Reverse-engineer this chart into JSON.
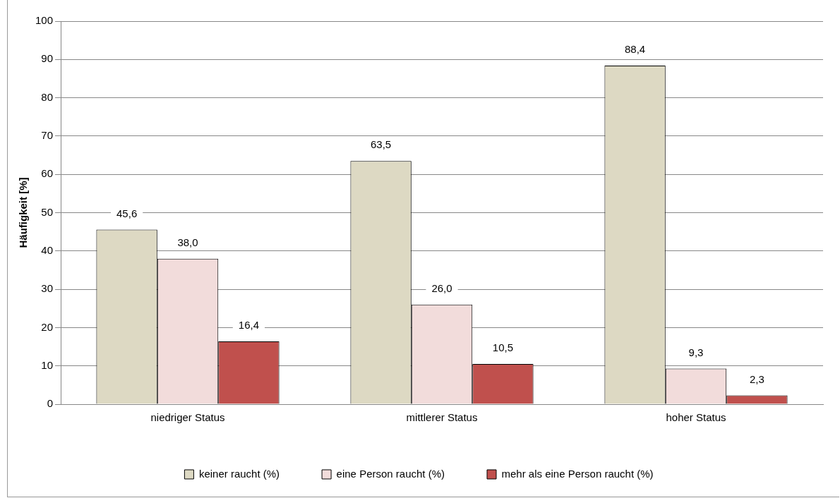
{
  "chart_data": {
    "type": "bar",
    "ylabel": "Häufigkeit [%]",
    "categories": [
      "niedriger Status",
      "mittlerer Status",
      "hoher Status"
    ],
    "series": [
      {
        "name": "keiner raucht (%)",
        "color": "#ddd9c3",
        "values": [
          45.6,
          63.5,
          88.4
        ],
        "value_labels": [
          "45,6",
          "63,5",
          "88,4"
        ]
      },
      {
        "name": "eine Person raucht (%)",
        "color": "#f2dcdb",
        "values": [
          38.0,
          26.0,
          9.3
        ],
        "value_labels": [
          "38,0",
          "26,0",
          "9,3"
        ]
      },
      {
        "name": "mehr als eine Person raucht (%)",
        "color": "#c0504d",
        "values": [
          16.4,
          10.5,
          2.3
        ],
        "value_labels": [
          "16,4",
          "10,5",
          "2,3"
        ]
      }
    ],
    "ylim": [
      0,
      100
    ],
    "yticks": [
      0,
      10,
      20,
      30,
      40,
      50,
      60,
      70,
      80,
      90,
      100
    ],
    "grid": "y",
    "legend": "bottom"
  }
}
